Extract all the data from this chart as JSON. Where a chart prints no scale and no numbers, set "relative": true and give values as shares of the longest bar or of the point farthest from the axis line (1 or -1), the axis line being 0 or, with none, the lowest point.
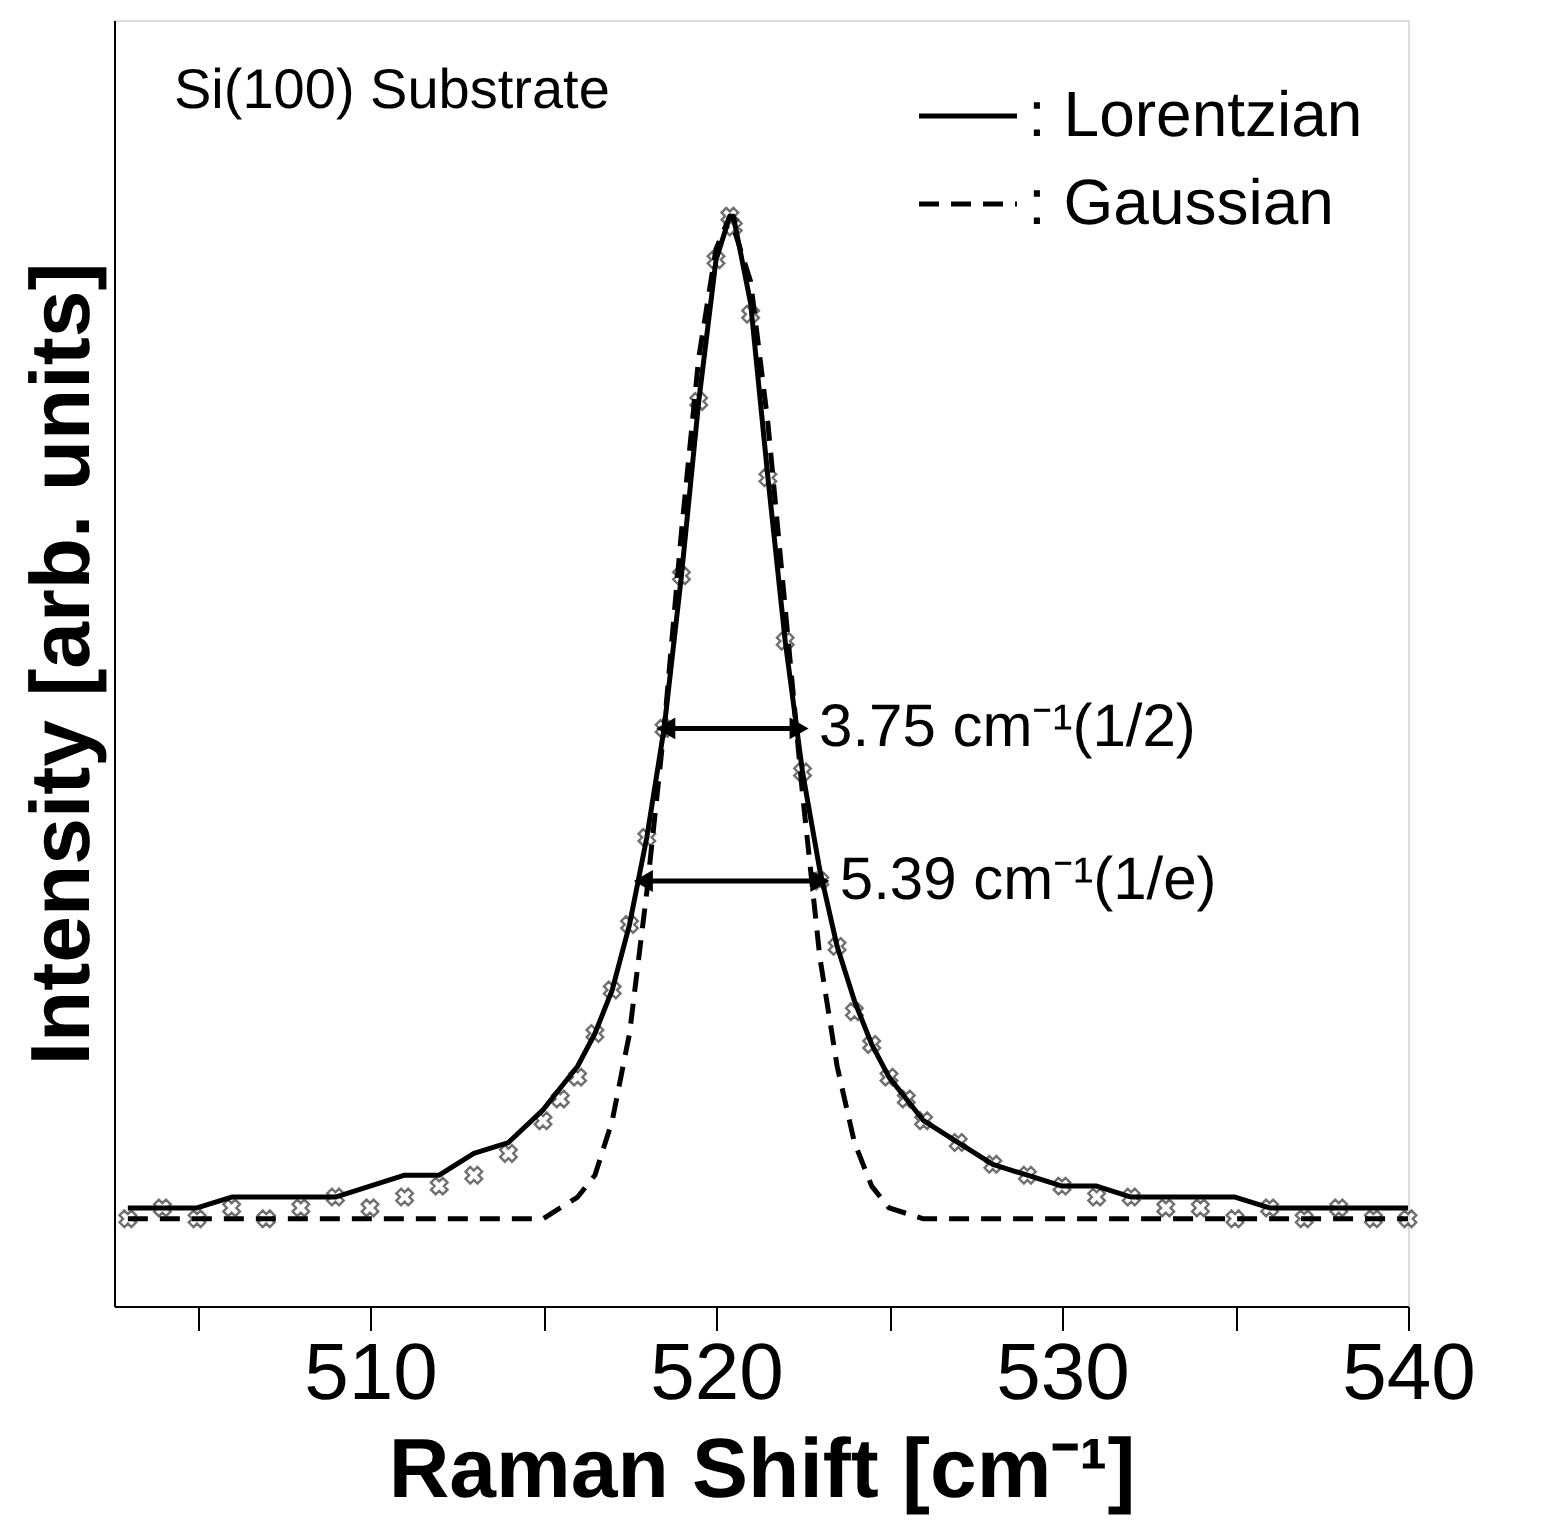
{
  "chart_data": {
    "type": "scatter",
    "relative": true,
    "xlabel": "Raman Shift [cm⁻¹]",
    "ylabel": "Intensity [arb. units]",
    "xlim": [
      502.6,
      540
    ],
    "xticks": [
      {
        "value": 505,
        "label": null
      },
      510,
      {
        "value": 515,
        "label": null
      },
      520,
      {
        "value": 525,
        "label": null
      },
      530,
      {
        "value": 535,
        "label": null
      },
      540
    ],
    "grid": false,
    "legend": "top right",
    "series": [
      {
        "marker": "cross",
        "color": "#333333",
        "x": [
          503,
          504,
          505,
          506,
          507,
          508,
          509,
          510,
          511,
          512,
          513,
          514,
          515,
          515.5,
          516,
          516.5,
          517,
          517.5,
          518,
          518.5,
          519,
          519.5,
          520,
          520.4,
          520.5,
          521,
          521.5,
          522,
          522.5,
          523,
          523.5,
          524,
          524.5,
          525,
          525.5,
          526,
          527,
          528,
          529,
          530,
          531,
          532,
          533,
          534,
          535,
          536,
          537,
          538,
          539,
          540
        ],
        "values": [
          0.08,
          0.09,
          0.08,
          0.09,
          0.08,
          0.09,
          0.1,
          0.09,
          0.1,
          0.11,
          0.12,
          0.14,
          0.17,
          0.19,
          0.21,
          0.25,
          0.29,
          0.35,
          0.43,
          0.53,
          0.67,
          0.83,
          0.96,
          1.0,
          0.99,
          0.91,
          0.76,
          0.61,
          0.49,
          0.39,
          0.33,
          0.27,
          0.24,
          0.21,
          0.19,
          0.17,
          0.15,
          0.13,
          0.12,
          0.11,
          0.1,
          0.1,
          0.09,
          0.09,
          0.08,
          0.09,
          0.08,
          0.09,
          0.08,
          0.08
        ]
      },
      {
        "type": "line",
        "name": ": Lorentzian",
        "line_style": "solid",
        "color": "#000000",
        "x": [
          503,
          504,
          505,
          506,
          507,
          508,
          509,
          510,
          511,
          512,
          513,
          514,
          515,
          515.5,
          516,
          516.5,
          517,
          517.5,
          518,
          518.5,
          519,
          519.5,
          520,
          520.4,
          520.5,
          521,
          521.5,
          522,
          522.5,
          523,
          523.5,
          524,
          524.5,
          525,
          525.5,
          526,
          527,
          528,
          529,
          530,
          531,
          532,
          533,
          534,
          535,
          536,
          537,
          538,
          539,
          540
        ],
        "values": [
          0.09,
          0.09,
          0.09,
          0.1,
          0.1,
          0.1,
          0.1,
          0.11,
          0.12,
          0.12,
          0.14,
          0.15,
          0.18,
          0.2,
          0.22,
          0.25,
          0.29,
          0.35,
          0.43,
          0.53,
          0.67,
          0.83,
          0.96,
          1.0,
          1.0,
          0.92,
          0.76,
          0.61,
          0.49,
          0.4,
          0.33,
          0.28,
          0.24,
          0.21,
          0.19,
          0.17,
          0.15,
          0.13,
          0.12,
          0.11,
          0.11,
          0.1,
          0.1,
          0.1,
          0.1,
          0.09,
          0.09,
          0.09,
          0.09,
          0.09
        ]
      },
      {
        "type": "line",
        "name": ": Gaussian",
        "line_style": "dashed",
        "color": "#000000",
        "x": [
          503,
          512,
          514,
          515,
          516,
          516.5,
          517,
          517.5,
          518,
          518.5,
          519,
          519.5,
          520,
          520.4,
          521,
          521.5,
          522,
          522.5,
          523,
          523.5,
          524,
          524.5,
          525,
          526,
          528,
          540
        ],
        "values": [
          0.08,
          0.08,
          0.08,
          0.08,
          0.1,
          0.12,
          0.17,
          0.25,
          0.38,
          0.53,
          0.71,
          0.87,
          0.97,
          1.0,
          0.94,
          0.81,
          0.64,
          0.47,
          0.32,
          0.22,
          0.15,
          0.11,
          0.09,
          0.08,
          0.08,
          0.08
        ]
      },
      {
        "type": "line",
        "marker": "triangle",
        "line_style": "solid",
        "color": "#000000",
        "x": [
          518.55,
          522.4
        ],
        "values": [
          0.53,
          0.53
        ]
      },
      {
        "type": "line",
        "marker": "triangle",
        "line_style": "solid",
        "color": "#000000",
        "x": [
          517.9,
          523.0
        ],
        "values": [
          0.39,
          0.39
        ]
      }
    ],
    "annotations": [
      "Si(100) Substrate",
      {
        "text": "3.75 cm⁻¹(1/2)",
        "x": 522.4,
        "y": 0.53
      },
      {
        "text": "5.39 cm⁻¹(1/e)",
        "x": 523.0,
        "y": 0.39
      }
    ]
  }
}
